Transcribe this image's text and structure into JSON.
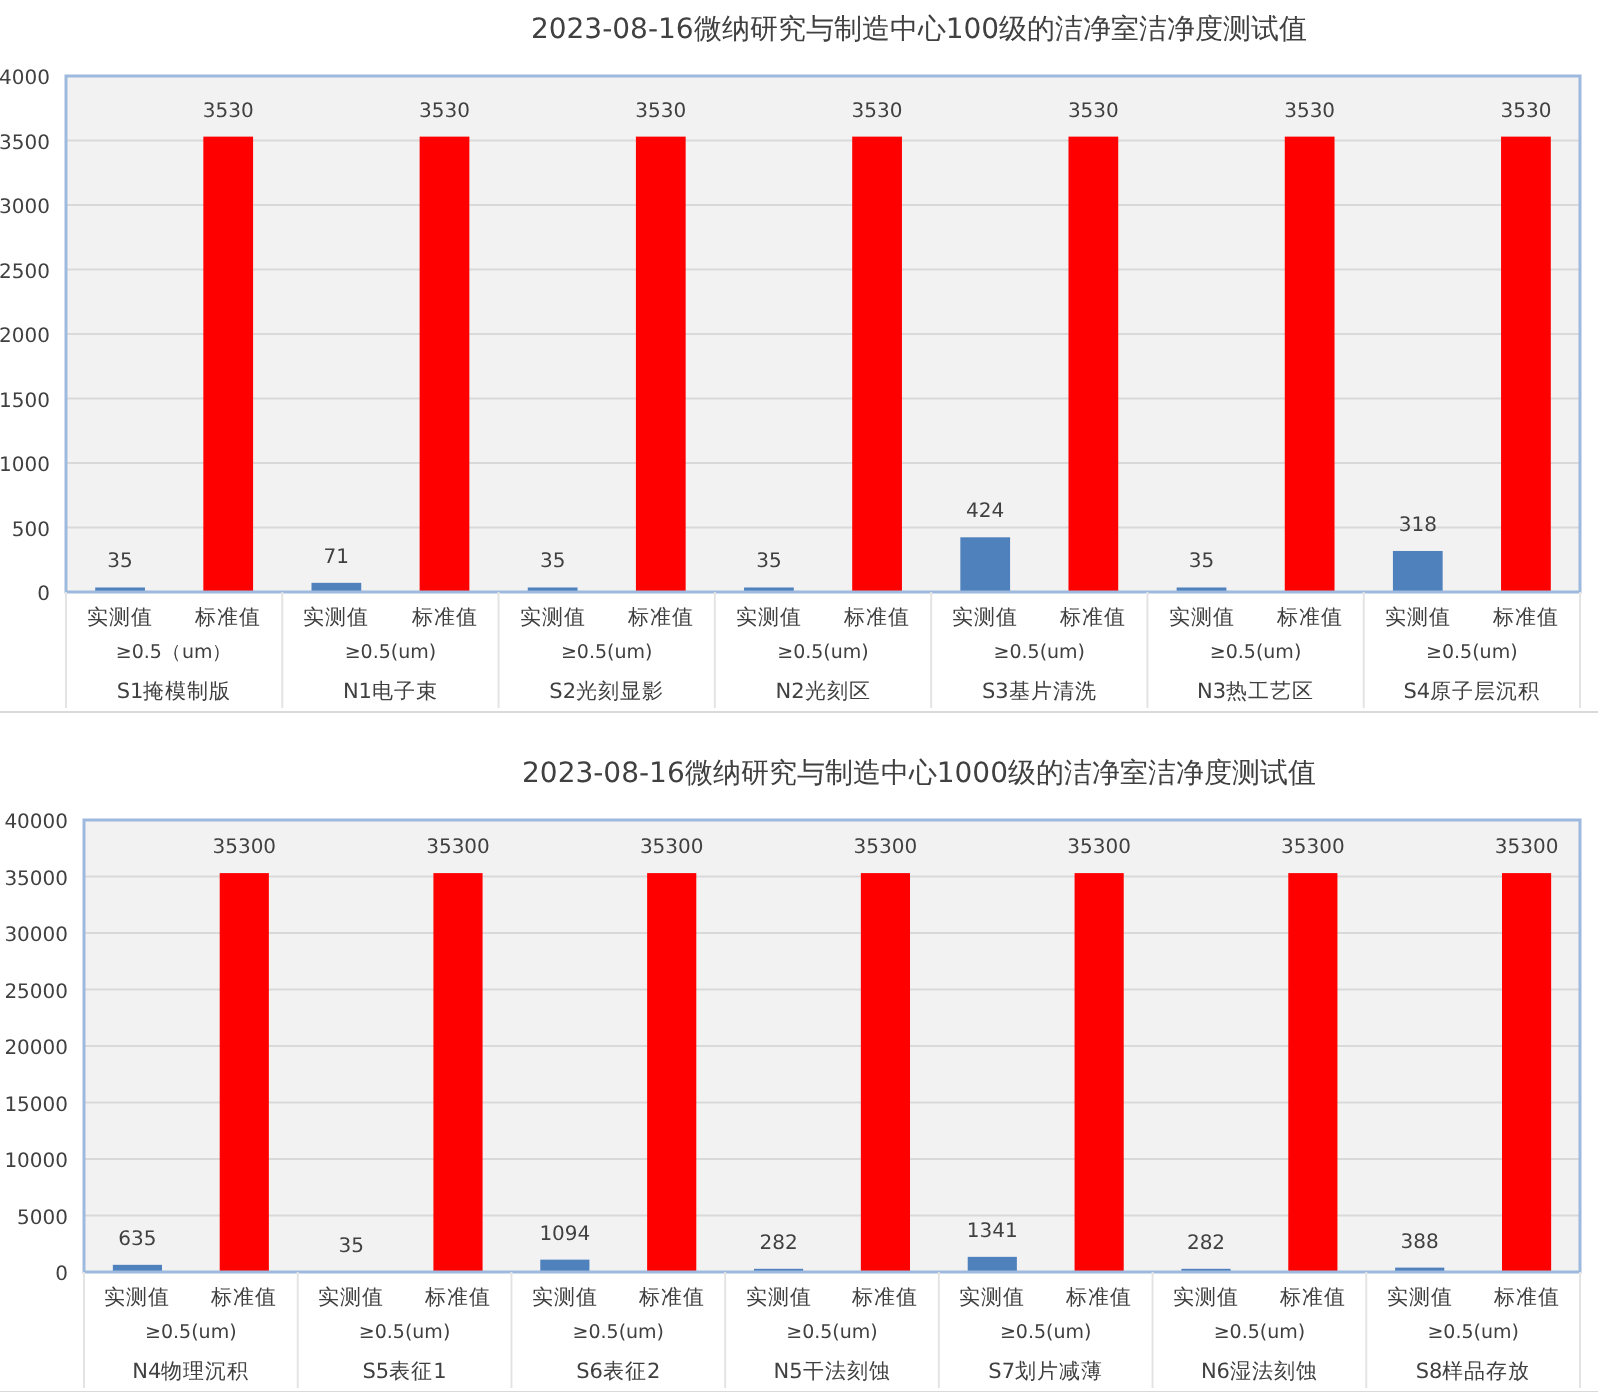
{
  "chart_data": [
    {
      "type": "bar",
      "title": "2023-08-16微纳研究与制造中心100级的洁净室洁净度测试值",
      "categories": [
        "实测值",
        "标准值",
        "实测值",
        "标准值",
        "实测值",
        "标准值",
        "实测值",
        "标准值",
        "实测值",
        "标准值",
        "实测值",
        "标准值",
        "实测值",
        "标准值"
      ],
      "values": [
        35,
        3530,
        71,
        3530,
        35,
        3530,
        35,
        3530,
        424,
        3530,
        35,
        3530,
        318,
        3530
      ],
      "colors": [
        "#4f81bd",
        "#ff0000",
        "#4f81bd",
        "#ff0000",
        "#4f81bd",
        "#ff0000",
        "#4f81bd",
        "#ff0000",
        "#4f81bd",
        "#ff0000",
        "#4f81bd",
        "#ff0000",
        "#4f81bd",
        "#ff0000"
      ],
      "ylim": [
        0,
        4000
      ],
      "yticks": [
        0,
        500,
        1000,
        1500,
        2000,
        2500,
        3000,
        3500,
        4000
      ],
      "grid": "y",
      "data_labels": true,
      "annotations": [
        "≥0.5（um）",
        "≥0.5(um)",
        "≥0.5(um)",
        "≥0.5(um)",
        "≥0.5(um)",
        "≥0.5(um)",
        "≥0.5(um)",
        "S1掩模制版",
        "N1电子束",
        "S2光刻显影",
        "N2光刻区",
        "S3基片清洗",
        "N3热工艺区",
        "S4原子层沉积"
      ]
    },
    {
      "type": "bar",
      "title": "2023-08-16微纳研究与制造中心1000级的洁净室洁净度测试值",
      "categories": [
        "实测值",
        "标准值",
        "实测值",
        "标准值",
        "实测值",
        "标准值",
        "实测值",
        "标准值",
        "实测值",
        "标准值",
        "实测值",
        "标准值",
        "实测值",
        "标准值"
      ],
      "values": [
        635,
        35300,
        35,
        35300,
        1094,
        35300,
        282,
        35300,
        1341,
        35300,
        282,
        35300,
        388,
        35300
      ],
      "colors": [
        "#4f81bd",
        "#ff0000",
        "#4f81bd",
        "#ff0000",
        "#4f81bd",
        "#ff0000",
        "#4f81bd",
        "#ff0000",
        "#4f81bd",
        "#ff0000",
        "#4f81bd",
        "#ff0000",
        "#4f81bd",
        "#ff0000"
      ],
      "ylim": [
        0,
        40000
      ],
      "yticks": [
        0,
        5000,
        10000,
        15000,
        20000,
        25000,
        30000,
        35000,
        40000
      ],
      "grid": "y",
      "data_labels": true,
      "annotations": [
        "≥0.5(um)",
        "≥0.5(um)",
        "≥0.5(um)",
        "≥0.5(um)",
        "≥0.5(um)",
        "≥0.5(um)",
        "≥0.5(um)",
        "N4物理沉积",
        "S5表征1",
        "S6表征2",
        "N5干法刻蚀",
        "S7划片减薄",
        "N6湿法刻蚀",
        "S8样品存放"
      ]
    }
  ]
}
